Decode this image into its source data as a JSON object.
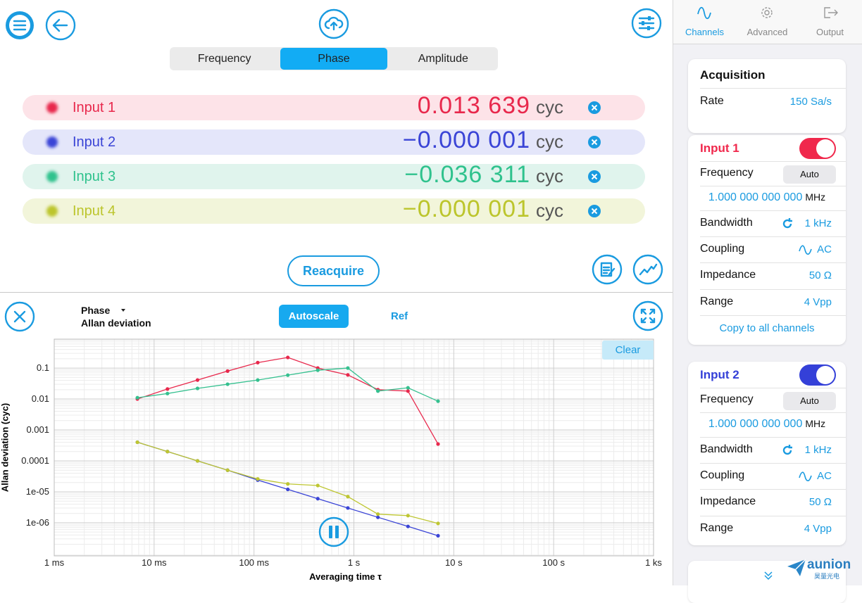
{
  "toolbar": {
    "segments": [
      "Frequency",
      "Phase",
      "Amplitude"
    ],
    "active_segment": 1
  },
  "inputs": [
    {
      "label": "Input 1",
      "value": "0.013 639",
      "unit": "cyc",
      "color": "#e8284c",
      "background": "#fde3e8"
    },
    {
      "label": "Input 2",
      "value": "−0.000 001",
      "unit": "cyc",
      "color": "#3a44d6",
      "background": "#e4e6fa"
    },
    {
      "label": "Input 3",
      "value": "−0.036 311",
      "unit": "cyc",
      "color": "#2fc28d",
      "background": "#e0f4ed"
    },
    {
      "label": "Input 4",
      "value": "−0.000 001",
      "unit": "cyc",
      "color": "#bcc52c",
      "background": "#f2f5da"
    }
  ],
  "reacquire": "Reacquire",
  "chart_panel": {
    "quantity": "Phase",
    "statistic": "Allan deviation",
    "autoscale": "Autoscale",
    "ref": "Ref",
    "clear": "Clear"
  },
  "chart_data": {
    "type": "line",
    "xlabel": "Averaging time τ",
    "ylabel": "Allan deviation (cyc)",
    "xscale": "log",
    "yscale": "log",
    "grid": true,
    "xlim": [
      0.001,
      1000
    ],
    "ylim": [
      8.5e-08,
      0.86
    ],
    "xticks": [
      {
        "value": 0.001,
        "label": "1 ms"
      },
      {
        "value": 0.01,
        "label": "10 ms"
      },
      {
        "value": 0.1,
        "label": "100 ms"
      },
      {
        "value": 1,
        "label": "1 s"
      },
      {
        "value": 10,
        "label": "10 s"
      },
      {
        "value": 100,
        "label": "100 s"
      },
      {
        "value": 1000,
        "label": "1 ks"
      }
    ],
    "yticks": [
      0.1,
      0.01,
      0.001,
      0.0001,
      {
        "value": 1e-05,
        "label": "1e-05"
      },
      {
        "value": 1e-06,
        "label": "1e-06"
      }
    ],
    "x": [
      0.0068,
      0.0136,
      0.0272,
      0.0544,
      0.109,
      0.218,
      0.435,
      0.87,
      1.74,
      3.48,
      6.96
    ],
    "series": [
      {
        "color": "#e8284c",
        "values": [
          0.01,
          0.021,
          0.041,
          0.08,
          0.15,
          0.22,
          0.1,
          0.06,
          0.02,
          0.018,
          0.00035
        ]
      },
      {
        "color": "#3a44d6",
        "values": [
          0.0004,
          0.0002,
          0.0001,
          5e-05,
          2.4e-05,
          1.2e-05,
          6e-06,
          3e-06,
          1.5e-06,
          7.6e-07,
          3.8e-07
        ]
      },
      {
        "color": "#35c08f",
        "values": [
          0.011,
          0.015,
          0.022,
          0.03,
          0.041,
          0.059,
          0.085,
          0.1,
          0.018,
          0.023,
          0.0085
        ]
      },
      {
        "color": "#bec632",
        "values": [
          0.0004,
          0.0002,
          0.0001,
          5e-05,
          2.6e-05,
          1.8e-05,
          1.6e-05,
          7e-06,
          1.9e-06,
          1.7e-06,
          9.5e-07
        ]
      }
    ]
  },
  "sidebar": {
    "tabs": [
      "Channels",
      "Advanced",
      "Output"
    ],
    "active_tab": 0,
    "acquisition": {
      "title": "Acquisition",
      "rate_label": "Rate",
      "rate_value": "150 Sa/s"
    },
    "channels": [
      {
        "title": "Input 1",
        "color": "#f0284c",
        "enabled": true,
        "frequency_label": "Frequency",
        "frequency_mode": "Auto",
        "frequency_value": "1.000 000 000 000",
        "frequency_unit": "MHz",
        "bandwidth_label": "Bandwidth",
        "bandwidth_value": "1 kHz",
        "coupling_label": "Coupling",
        "coupling_value": "AC",
        "impedance_label": "Impedance",
        "impedance_value": "50 Ω",
        "range_label": "Range",
        "range_value": "4 Vpp"
      },
      {
        "title": "Input 2",
        "color": "#3440d8",
        "enabled": true,
        "frequency_label": "Frequency",
        "frequency_mode": "Auto",
        "frequency_value": "1.000 000 000 000",
        "frequency_unit": "MHz",
        "bandwidth_label": "Bandwidth",
        "bandwidth_value": "1 kHz",
        "coupling_label": "Coupling",
        "coupling_value": "AC",
        "impedance_label": "Impedance",
        "impedance_value": "50 Ω",
        "range_label": "Range",
        "range_value": "4 Vpp"
      }
    ],
    "copy_all": "Copy to all channels"
  },
  "brand": {
    "name": "aunion",
    "subtitle": "昊量光电"
  }
}
